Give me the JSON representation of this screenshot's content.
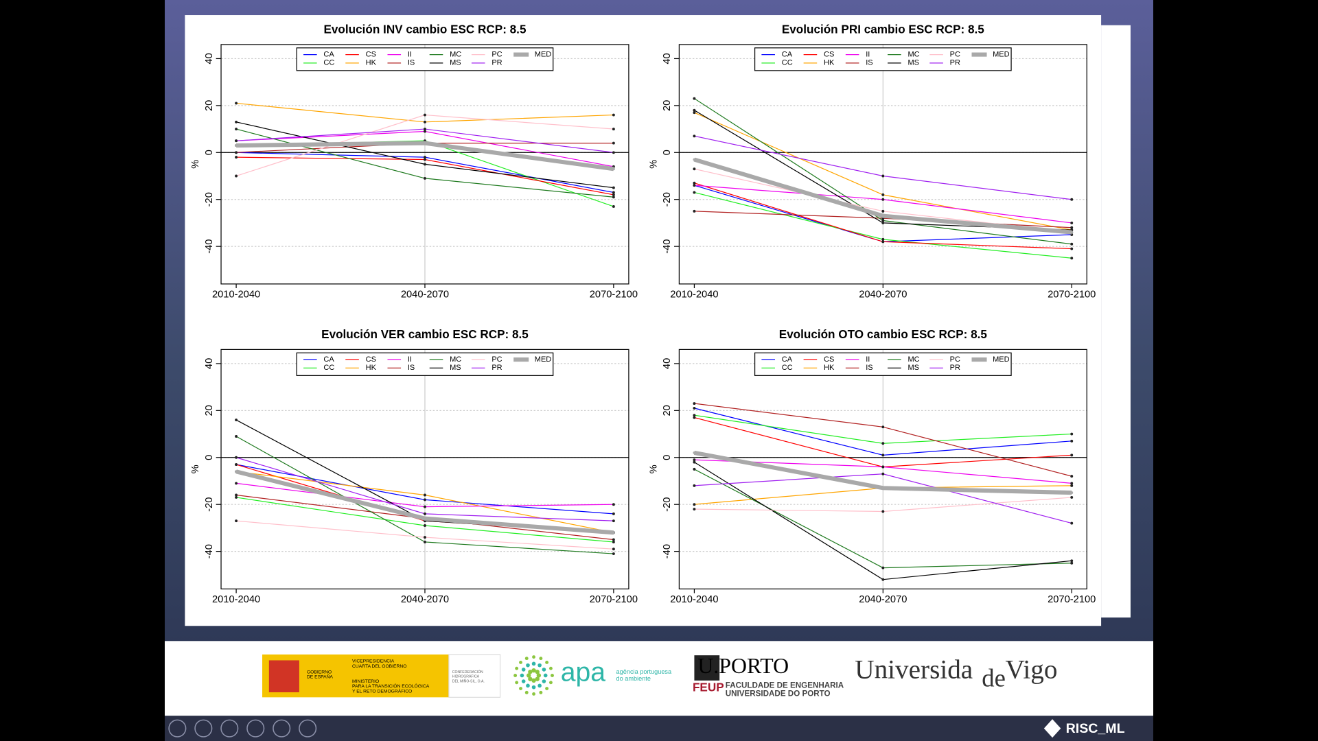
{
  "chart_data": [
    {
      "type": "line",
      "title": "Evolución INV cambio ESC RCP:  8.5",
      "y_label": "%",
      "categories": [
        "2010-2040",
        "2040-2070",
        "2070-2100"
      ],
      "ylim": [
        -56,
        46
      ],
      "yticks": [
        -40,
        -20,
        0,
        20,
        40
      ],
      "grid": true,
      "hline": 0,
      "legend": "top",
      "series": [
        {
          "name": "CA",
          "color": "#0000ff",
          "line_width": 1,
          "values": [
            0,
            -2,
            -17
          ]
        },
        {
          "name": "CC",
          "color": "#22ee22",
          "line_width": 1,
          "values": [
            3,
            5,
            -23
          ]
        },
        {
          "name": "CS",
          "color": "#ff0000",
          "line_width": 1,
          "values": [
            -2,
            -3,
            -18
          ]
        },
        {
          "name": "HK",
          "color": "#ffa500",
          "line_width": 1,
          "values": [
            21,
            13,
            16
          ]
        },
        {
          "name": "II",
          "color": "#ee00ee",
          "line_width": 1,
          "values": [
            5,
            9,
            -6
          ]
        },
        {
          "name": "IS",
          "color": "#b22222",
          "line_width": 1,
          "values": [
            0,
            4,
            4
          ]
        },
        {
          "name": "MC",
          "color": "#1f7a1f",
          "line_width": 1,
          "values": [
            10,
            -11,
            -19
          ]
        },
        {
          "name": "MS",
          "color": "#000000",
          "line_width": 1,
          "values": [
            13,
            -5,
            -15
          ]
        },
        {
          "name": "PC",
          "color": "#ffc0cb",
          "line_width": 1,
          "values": [
            -10,
            16,
            10
          ]
        },
        {
          "name": "PR",
          "color": "#a020f0",
          "line_width": 1,
          "values": [
            5,
            10,
            0
          ]
        },
        {
          "name": "MED",
          "color": "#a9a9a9",
          "line_width": 5,
          "values": [
            3,
            4,
            -7
          ]
        }
      ]
    },
    {
      "type": "line",
      "title": "Evolución PRI cambio ESC RCP:  8.5",
      "y_label": "%",
      "categories": [
        "2010-2040",
        "2040-2070",
        "2070-2100"
      ],
      "ylim": [
        -56,
        46
      ],
      "yticks": [
        -40,
        -20,
        0,
        20,
        40
      ],
      "grid": true,
      "hline": 0,
      "legend": "top",
      "series": [
        {
          "name": "CA",
          "color": "#0000ff",
          "line_width": 1,
          "values": [
            -14,
            -38,
            -35
          ]
        },
        {
          "name": "CC",
          "color": "#22ee22",
          "line_width": 1,
          "values": [
            -17,
            -37,
            -45
          ]
        },
        {
          "name": "CS",
          "color": "#ff0000",
          "line_width": 1,
          "values": [
            -13,
            -38,
            -41
          ]
        },
        {
          "name": "HK",
          "color": "#ffa500",
          "line_width": 1,
          "values": [
            17,
            -18,
            -33
          ]
        },
        {
          "name": "II",
          "color": "#ee00ee",
          "line_width": 1,
          "values": [
            -14,
            -20,
            -30
          ]
        },
        {
          "name": "IS",
          "color": "#b22222",
          "line_width": 1,
          "values": [
            -25,
            -28,
            -32
          ]
        },
        {
          "name": "MC",
          "color": "#1f7a1f",
          "line_width": 1,
          "values": [
            23,
            -29,
            -39
          ]
        },
        {
          "name": "MS",
          "color": "#000000",
          "line_width": 1,
          "values": [
            18,
            -30,
            -33
          ]
        },
        {
          "name": "PC",
          "color": "#ffc0cb",
          "line_width": 1,
          "values": [
            -7,
            -25,
            -34
          ]
        },
        {
          "name": "PR",
          "color": "#a020f0",
          "line_width": 1,
          "values": [
            7,
            -10,
            -20
          ]
        },
        {
          "name": "MED",
          "color": "#a9a9a9",
          "line_width": 5,
          "values": [
            -3,
            -27,
            -34
          ]
        }
      ]
    },
    {
      "type": "line",
      "title": "Evolución VER cambio ESC RCP:  8.5",
      "y_label": "%",
      "categories": [
        "2010-2040",
        "2040-2070",
        "2070-2100"
      ],
      "ylim": [
        -56,
        46
      ],
      "yticks": [
        -40,
        -20,
        0,
        20,
        40
      ],
      "grid": true,
      "hline": 0,
      "legend": "top",
      "series": [
        {
          "name": "CA",
          "color": "#0000ff",
          "line_width": 1,
          "values": [
            -3,
            -18,
            -24
          ]
        },
        {
          "name": "CC",
          "color": "#22ee22",
          "line_width": 1,
          "values": [
            -17,
            -29,
            -36
          ]
        },
        {
          "name": "CS",
          "color": "#ff0000",
          "line_width": 1,
          "values": [
            -3,
            -27,
            -32
          ]
        },
        {
          "name": "HK",
          "color": "#ffa500",
          "line_width": 1,
          "values": [
            -6,
            -16,
            -32
          ]
        },
        {
          "name": "II",
          "color": "#ee00ee",
          "line_width": 1,
          "values": [
            -11,
            -21,
            -20
          ]
        },
        {
          "name": "IS",
          "color": "#b22222",
          "line_width": 1,
          "values": [
            -16,
            -26,
            -35
          ]
        },
        {
          "name": "MC",
          "color": "#1f7a1f",
          "line_width": 1,
          "values": [
            9,
            -36,
            -41
          ]
        },
        {
          "name": "MS",
          "color": "#000000",
          "line_width": 1,
          "values": [
            16,
            -27,
            -32
          ]
        },
        {
          "name": "PC",
          "color": "#ffc0cb",
          "line_width": 1,
          "values": [
            -27,
            -34,
            -39
          ]
        },
        {
          "name": "PR",
          "color": "#a020f0",
          "line_width": 1,
          "values": [
            0,
            -24,
            -27
          ]
        },
        {
          "name": "MED",
          "color": "#a9a9a9",
          "line_width": 5,
          "values": [
            -6,
            -26,
            -32
          ]
        }
      ]
    },
    {
      "type": "line",
      "title": "Evolución OTO cambio ESC RCP:  8.5",
      "y_label": "%",
      "categories": [
        "2010-2040",
        "2040-2070",
        "2070-2100"
      ],
      "ylim": [
        -56,
        46
      ],
      "yticks": [
        -40,
        -20,
        0,
        20,
        40
      ],
      "grid": true,
      "hline": 0,
      "legend": "top",
      "series": [
        {
          "name": "CA",
          "color": "#0000ff",
          "line_width": 1,
          "values": [
            21,
            1,
            7
          ]
        },
        {
          "name": "CC",
          "color": "#22ee22",
          "line_width": 1,
          "values": [
            18,
            6,
            10
          ]
        },
        {
          "name": "CS",
          "color": "#ff0000",
          "line_width": 1,
          "values": [
            17,
            -4,
            1
          ]
        },
        {
          "name": "HK",
          "color": "#ffa500",
          "line_width": 1,
          "values": [
            -20,
            -13,
            -12
          ]
        },
        {
          "name": "II",
          "color": "#ee00ee",
          "line_width": 1,
          "values": [
            -1,
            -4,
            -11
          ]
        },
        {
          "name": "IS",
          "color": "#b22222",
          "line_width": 1,
          "values": [
            23,
            13,
            -8
          ]
        },
        {
          "name": "MC",
          "color": "#1f7a1f",
          "line_width": 1,
          "values": [
            -5,
            -47,
            -45
          ]
        },
        {
          "name": "MS",
          "color": "#000000",
          "line_width": 1,
          "values": [
            -2,
            -52,
            -44
          ]
        },
        {
          "name": "PC",
          "color": "#ffc0cb",
          "line_width": 1,
          "values": [
            -22,
            -23,
            -17
          ]
        },
        {
          "name": "PR",
          "color": "#a020f0",
          "line_width": 1,
          "values": [
            -12,
            -7,
            -28
          ]
        },
        {
          "name": "MED",
          "color": "#a9a9a9",
          "line_width": 5,
          "values": [
            2,
            -13,
            -15
          ]
        }
      ]
    }
  ],
  "footer": {
    "gobierno": [
      "GOBIERNO",
      "DE ESPAÑA"
    ],
    "vicepresidencia": [
      "VICEPRESIDENCIA",
      "CUARTA DEL GOBIERNO"
    ],
    "ministerio": [
      "MINISTERIO",
      "PARA LA TRANSICIÓN ECOLÓGICA",
      "Y EL RETO DEMOGRÁFICO"
    ],
    "confederacion": [
      "CONFEDERACIÓN",
      "HIDROGRÁFICA",
      "DEL MIÑO-SIL, O.A."
    ],
    "apa": "apa",
    "apa_sub": [
      "agência portuguesa",
      "do ambiente"
    ],
    "uporto": "U.PORTO",
    "feup": "FEUP",
    "feup_name": [
      "FACULDADE DE ENGENHARIA",
      "UNIVERSIDADE DO PORTO"
    ],
    "vigo": [
      "Universida",
      "de",
      "Vigo"
    ]
  },
  "brand": "RISC_ML"
}
